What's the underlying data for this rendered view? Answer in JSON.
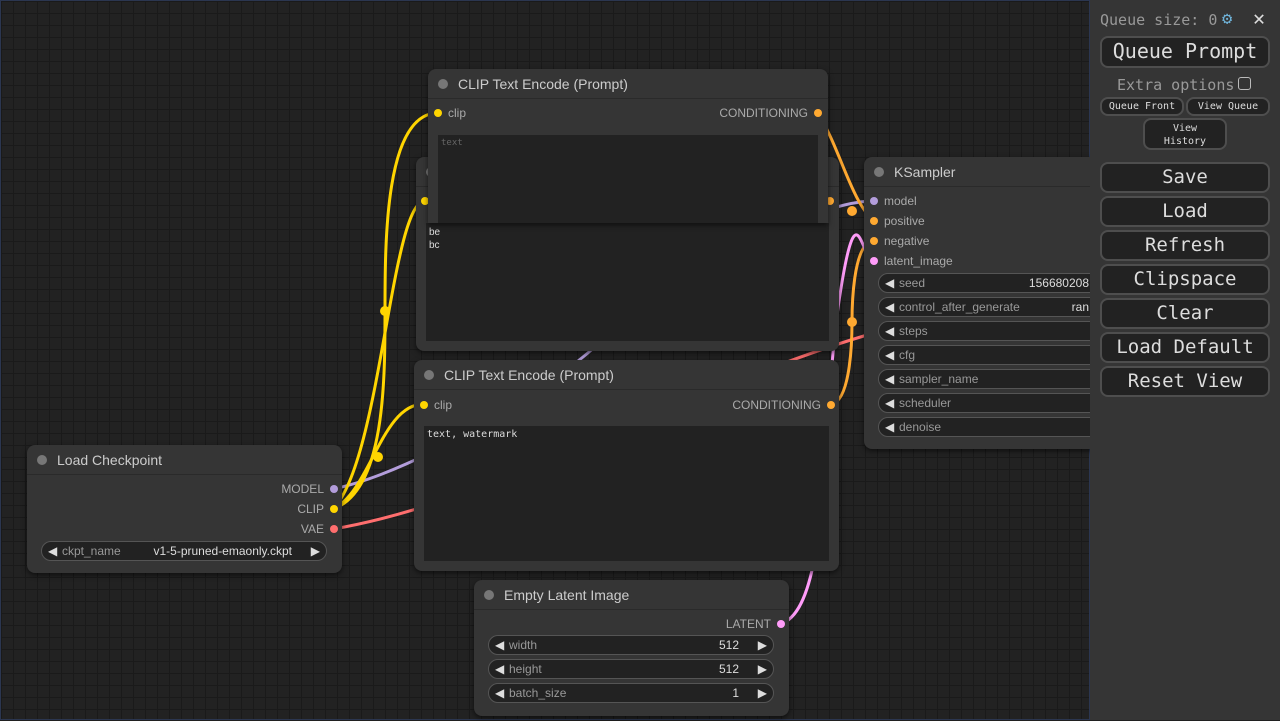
{
  "colors": {
    "clip": "#ffd500",
    "model": "#b39ddb",
    "vae": "#ff6e6e",
    "conditioning": "#ffa931",
    "latent": "#ff9cf9"
  },
  "panel": {
    "queue_size_label": "Queue size: 0",
    "settings_icon": "gear-icon",
    "close_icon": "close-icon",
    "queue_prompt": "Queue Prompt",
    "extra_options": "Extra options",
    "queue_front": "Queue Front",
    "view_queue": "View Queue",
    "view_history": "View History",
    "buttons": [
      "Save",
      "Load",
      "Refresh",
      "Clipspace",
      "Clear",
      "Load Default",
      "Reset View"
    ]
  },
  "nodes": {
    "clip_top": {
      "title": "CLIP Text Encode (Prompt)",
      "input": "clip",
      "output": "CONDITIONING",
      "text_placeholder": "text"
    },
    "clip_back": {
      "title": "C",
      "text": "be\nbc"
    },
    "clip_bottom": {
      "title": "CLIP Text Encode (Prompt)",
      "input": "clip",
      "output": "CONDITIONING",
      "text": "text, watermark"
    },
    "checkpoint": {
      "title": "Load Checkpoint",
      "outputs": [
        "MODEL",
        "CLIP",
        "VAE"
      ],
      "widget": {
        "label": "ckpt_name",
        "value": "v1-5-pruned-emaonly.ckpt"
      }
    },
    "ksampler": {
      "title": "KSampler",
      "inputs": [
        "model",
        "positive",
        "negative",
        "latent_image"
      ],
      "widgets": [
        {
          "label": "seed",
          "value": "156680208"
        },
        {
          "label": "control_after_generate",
          "value": "ran"
        },
        {
          "label": "steps",
          "value": ""
        },
        {
          "label": "cfg",
          "value": ""
        },
        {
          "label": "sampler_name",
          "value": ""
        },
        {
          "label": "scheduler",
          "value": ""
        },
        {
          "label": "denoise",
          "value": ""
        }
      ]
    },
    "latent": {
      "title": "Empty Latent Image",
      "output": "LATENT",
      "widgets": [
        {
          "label": "width",
          "value": "512"
        },
        {
          "label": "height",
          "value": "512"
        },
        {
          "label": "batch_size",
          "value": "1"
        }
      ]
    }
  }
}
